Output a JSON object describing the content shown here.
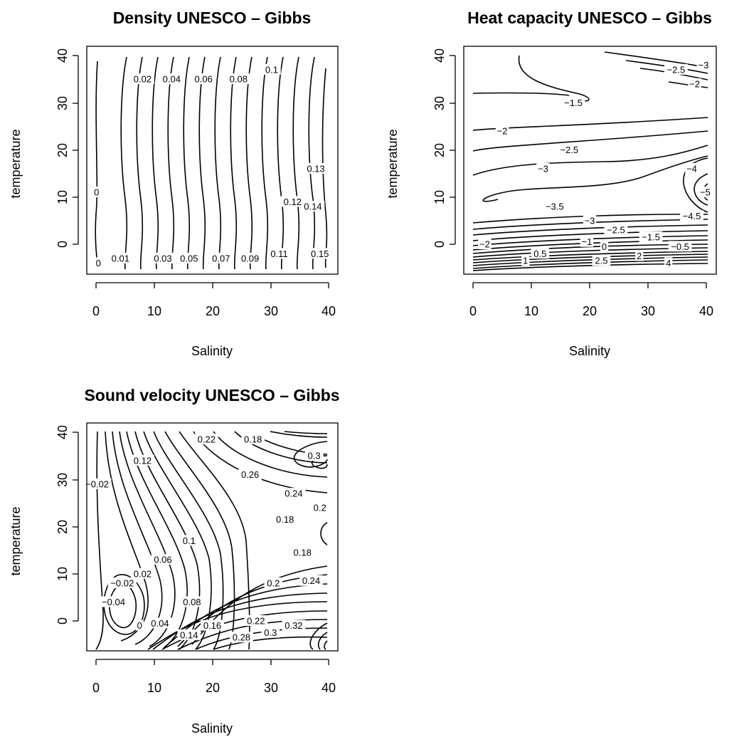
{
  "chart_data": [
    {
      "type": "contour",
      "title": "Density UNESCO – Gibbs",
      "xlabel": "Salinity",
      "ylabel": "temperature",
      "xlim": [
        0,
        40
      ],
      "ylim": [
        -5,
        40
      ],
      "xticks": [
        "0",
        "10",
        "20",
        "30",
        "40"
      ],
      "yticks": [
        "0",
        "10",
        "20",
        "30",
        "40"
      ],
      "contour_labels": [
        {
          "text": "0",
          "s": 0.4,
          "t": -4
        },
        {
          "text": "0",
          "s": 0.1,
          "t": 11
        },
        {
          "text": "0.01",
          "s": 4.2,
          "t": -3
        },
        {
          "text": "0.02",
          "s": 8.0,
          "t": 35
        },
        {
          "text": "0.03",
          "s": 11.5,
          "t": -3
        },
        {
          "text": "0.04",
          "s": 13.0,
          "t": 35
        },
        {
          "text": "0.05",
          "s": 16.0,
          "t": -3
        },
        {
          "text": "0.06",
          "s": 18.5,
          "t": 35
        },
        {
          "text": "0.07",
          "s": 21.5,
          "t": -3
        },
        {
          "text": "0.08",
          "s": 24.5,
          "t": 35
        },
        {
          "text": "0.09",
          "s": 26.5,
          "t": -3
        },
        {
          "text": "0.1",
          "s": 30.2,
          "t": 37
        },
        {
          "text": "0.11",
          "s": 31.5,
          "t": -2
        },
        {
          "text": "0.12",
          "s": 33.8,
          "t": 9
        },
        {
          "text": "0.13",
          "s": 37.8,
          "t": 16
        },
        {
          "text": "0.14",
          "s": 37.3,
          "t": 8
        },
        {
          "text": "0.15",
          "s": 38.5,
          "t": -2
        }
      ]
    },
    {
      "type": "contour",
      "title": "Heat capacity UNESCO – Gibbs",
      "xlabel": "Salinity",
      "ylabel": "temperature",
      "xlim": [
        0,
        40
      ],
      "ylim": [
        -5,
        40
      ],
      "xticks": [
        "0",
        "10",
        "20",
        "30",
        "40"
      ],
      "yticks": [
        "0",
        "10",
        "20",
        "30",
        "40"
      ],
      "contour_labels": [
        {
          "text": "−1.5",
          "s": 17.2,
          "t": 30
        },
        {
          "text": "−2",
          "s": 5.0,
          "t": 24
        },
        {
          "text": "−2.5",
          "s": 16.5,
          "t": 20
        },
        {
          "text": "−3",
          "s": 12.0,
          "t": 16
        },
        {
          "text": "−3.5",
          "s": 14.0,
          "t": 8
        },
        {
          "text": "−4",
          "s": 37.5,
          "t": 16
        },
        {
          "text": "−5",
          "s": 39.8,
          "t": 11
        },
        {
          "text": "−4.5",
          "s": 37.5,
          "t": 6
        },
        {
          "text": "−2.5",
          "s": 34.8,
          "t": 37
        },
        {
          "text": "−3",
          "s": 39.5,
          "t": 38
        },
        {
          "text": "−2",
          "s": 38.0,
          "t": 34
        },
        {
          "text": "−3",
          "s": 20.0,
          "t": 5
        },
        {
          "text": "−2.5",
          "s": 24.5,
          "t": 3
        },
        {
          "text": "−2",
          "s": 2.0,
          "t": 0
        },
        {
          "text": "−1",
          "s": 19.5,
          "t": 0.5
        },
        {
          "text": "−1.5",
          "s": 30.5,
          "t": 1.5
        },
        {
          "text": "0",
          "s": 22.5,
          "t": -0.5
        },
        {
          "text": "−0.5",
          "s": 35.5,
          "t": -0.5
        },
        {
          "text": "0.5",
          "s": 11.5,
          "t": -2
        },
        {
          "text": "1",
          "s": 9.0,
          "t": -3.5
        },
        {
          "text": "2.5",
          "s": 22.0,
          "t": -3.5
        },
        {
          "text": "2",
          "s": 28.5,
          "t": -2.5
        },
        {
          "text": "4",
          "s": 33.5,
          "t": -4
        }
      ]
    },
    {
      "type": "contour",
      "title": "Sound velocity UNESCO – Gibbs",
      "xlabel": "Salinity",
      "ylabel": "temperature",
      "xlim": [
        0,
        40
      ],
      "ylim": [
        -5,
        40
      ],
      "xticks": [
        "0",
        "10",
        "20",
        "30",
        "40"
      ],
      "yticks": [
        "0",
        "10",
        "20",
        "30",
        "40"
      ],
      "contour_labels": [
        {
          "text": "−0.02",
          "s": 0.2,
          "t": 29
        },
        {
          "text": "0.12",
          "s": 8.0,
          "t": 34
        },
        {
          "text": "0.22",
          "s": 19.0,
          "t": 38.5
        },
        {
          "text": "0.18",
          "s": 27.0,
          "t": 38.5
        },
        {
          "text": "0.26",
          "s": 26.5,
          "t": 31
        },
        {
          "text": "0.24",
          "s": 34.0,
          "t": 27
        },
        {
          "text": "0.3",
          "s": 37.5,
          "t": 35
        },
        {
          "text": "0.2",
          "s": 38.5,
          "t": 24
        },
        {
          "text": "0.18",
          "s": 32.5,
          "t": 21.5
        },
        {
          "text": "0.1",
          "s": 16.0,
          "t": 17
        },
        {
          "text": "0.06",
          "s": 11.5,
          "t": 13
        },
        {
          "text": "0.02",
          "s": 8.0,
          "t": 10
        },
        {
          "text": "0.18",
          "s": 35.5,
          "t": 14.5
        },
        {
          "text": "0.2",
          "s": 30.5,
          "t": 8
        },
        {
          "text": "0.24",
          "s": 37.0,
          "t": 8.5
        },
        {
          "text": "−0.02",
          "s": 4.5,
          "t": 8
        },
        {
          "text": "−0.04",
          "s": 3.0,
          "t": 4
        },
        {
          "text": "0.08",
          "s": 16.5,
          "t": 4
        },
        {
          "text": "0.04",
          "s": 11.0,
          "t": -0.5
        },
        {
          "text": "0",
          "s": 7.5,
          "t": -1
        },
        {
          "text": "0.16",
          "s": 20.0,
          "t": -1
        },
        {
          "text": "0.22",
          "s": 27.5,
          "t": 0
        },
        {
          "text": "0.14",
          "s": 16.0,
          "t": -3
        },
        {
          "text": "0.28",
          "s": 25.0,
          "t": -3.5
        },
        {
          "text": "0.3",
          "s": 30.0,
          "t": -2.5
        },
        {
          "text": "0.32",
          "s": 34.0,
          "t": -1
        }
      ]
    }
  ]
}
